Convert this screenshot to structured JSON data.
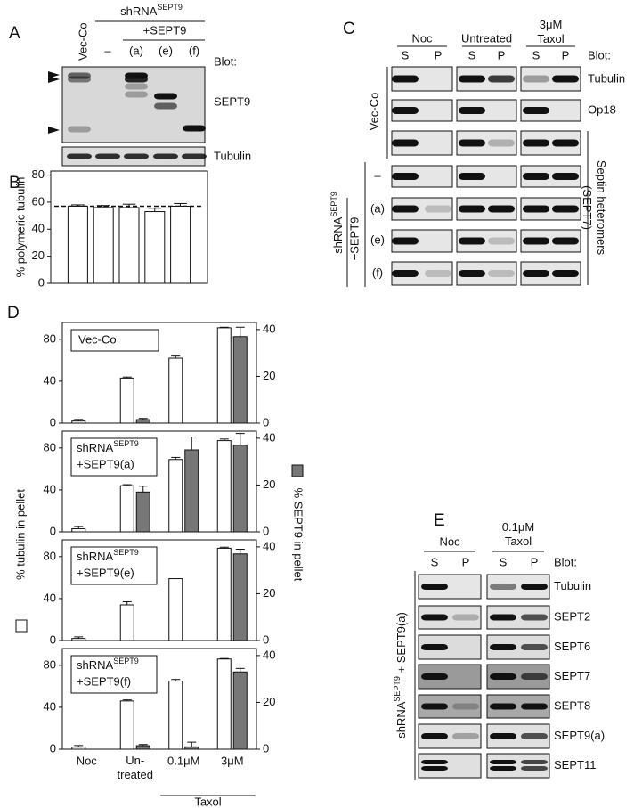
{
  "panel_a": {
    "letter": "A",
    "lanes": [
      "Vec-Co",
      "–",
      "(a)",
      "(e)",
      "(f)"
    ],
    "group": {
      "text": "shRNA",
      "sup": "SEPT9"
    },
    "subgroup": "+SEPT9",
    "blot_heading": "Blot:",
    "blots": [
      "SEPT9",
      "Tubulin"
    ]
  },
  "panel_c": {
    "letter": "C",
    "columns": [
      {
        "label": "Noc",
        "lanes": [
          "S",
          "P"
        ]
      },
      {
        "label": "Untreated",
        "lanes": [
          "S",
          "P"
        ]
      },
      {
        "label": "3μM\nTaxol",
        "lanes": [
          "S",
          "P"
        ]
      }
    ],
    "blot_heading": "Blot:",
    "blots": [
      "Tubulin",
      "Op18"
    ],
    "bracket_label": "Septin heteromers\n(SEPT7)",
    "control": "Vec-Co",
    "group": {
      "text": "shRNA",
      "sup": "SEPT9",
      "line2": "+SEPT9"
    },
    "rows": [
      "–",
      "(a)",
      "(e)",
      "(f)"
    ]
  },
  "panel_d": {
    "letter": "D",
    "ylabel": "% tubulin in pellet",
    "y2label": "% SEPT9 in pellet",
    "annotation": "Taxol"
  },
  "panel_e": {
    "letter": "E",
    "columns": [
      {
        "label": "Noc",
        "lanes": [
          "S",
          "P"
        ]
      },
      {
        "label": "0.1μM\nTaxol",
        "lanes": [
          "S",
          "P"
        ]
      }
    ],
    "blot_heading": "Blot:",
    "blots": [
      "Tubulin",
      "SEPT2",
      "SEPT6",
      "SEPT7",
      "SEPT8",
      "SEPT9(a)",
      "SEPT11"
    ],
    "group": {
      "text": "shRNA",
      "sup": "SEPT9",
      "rest": " + SEPT9(a)"
    }
  },
  "chart_data": [
    {
      "type": "bar",
      "panel": "B",
      "ylabel": "% polymeric tubulin",
      "categories": [
        null,
        null,
        null,
        null,
        null
      ],
      "values": [
        57,
        56,
        56,
        53,
        57
      ],
      "errors": [
        1,
        1.5,
        2.5,
        2.5,
        2
      ],
      "color": "#ffffff",
      "ylim": [
        0,
        83
      ],
      "yticks": [
        0,
        20,
        40,
        60,
        80
      ],
      "reference_line": 57
    },
    {
      "type": "bar",
      "label": {
        "text": "Vec-Co"
      },
      "categories": [
        null,
        null,
        null,
        null
      ],
      "series": [
        {
          "color": "#ffffff",
          "values": [
            2,
            43,
            62,
            91
          ],
          "errors": [
            1.5,
            1,
            2,
            0.5
          ]
        },
        {
          "color": "#777777",
          "axis": "y2",
          "values": [
            null,
            1.5,
            null,
            37
          ],
          "errors": [
            null,
            0.5,
            null,
            4
          ]
        }
      ],
      "ylim": [
        0,
        96
      ],
      "yticks": [
        0,
        40,
        80
      ],
      "y2lim": [
        0,
        43
      ],
      "y2ticks": [
        0,
        20,
        40
      ]
    },
    {
      "type": "bar",
      "label": {
        "text": "shRNA",
        "sup": "SEPT9",
        "line2": "+SEPT9(a)"
      },
      "categories": [
        null,
        null,
        null,
        null
      ],
      "series": [
        {
          "color": "#ffffff",
          "values": [
            3,
            44,
            69,
            87
          ],
          "errors": [
            2,
            1,
            2,
            1.5
          ]
        },
        {
          "color": "#777777",
          "axis": "y2",
          "values": [
            null,
            17,
            35,
            37
          ],
          "errors": [
            null,
            2.5,
            5.5,
            5
          ]
        }
      ],
      "ylim": [
        0,
        96
      ],
      "yticks": [
        0,
        40,
        80
      ],
      "y2lim": [
        0,
        43
      ],
      "y2ticks": [
        0,
        20,
        40
      ]
    },
    {
      "type": "bar",
      "label": {
        "text": "shRNA",
        "sup": "SEPT9",
        "line2": "+SEPT9(e)"
      },
      "categories": [
        null,
        null,
        null,
        null
      ],
      "series": [
        {
          "color": "#ffffff",
          "values": [
            2,
            34,
            59,
            88
          ],
          "errors": [
            1.5,
            3,
            null,
            1
          ]
        },
        {
          "color": "#777777",
          "axis": "y2",
          "values": [
            null,
            null,
            null,
            37
          ],
          "errors": [
            null,
            null,
            null,
            2
          ]
        }
      ],
      "ylim": [
        0,
        96
      ],
      "yticks": [
        0,
        40,
        80
      ],
      "y2lim": [
        0,
        43
      ],
      "y2ticks": [
        0,
        20,
        40
      ]
    },
    {
      "type": "bar",
      "label": {
        "text": "shRNA",
        "sup": "SEPT9",
        "line2": "+SEPT9(f)"
      },
      "categories": [
        "Noc",
        "Un-\ntreated",
        "0.1μM",
        "3μM"
      ],
      "series": [
        {
          "color": "#ffffff",
          "values": [
            2,
            46,
            65,
            86
          ],
          "errors": [
            1.5,
            1,
            1.5,
            0.5
          ]
        },
        {
          "color": "#777777",
          "axis": "y2",
          "values": [
            null,
            1.5,
            1,
            33
          ],
          "errors": [
            null,
            0.5,
            2,
            1.5
          ]
        }
      ],
      "ylim": [
        0,
        96
      ],
      "yticks": [
        0,
        40,
        80
      ],
      "y2lim": [
        0,
        43
      ],
      "y2ticks": [
        0,
        20,
        40
      ]
    }
  ]
}
